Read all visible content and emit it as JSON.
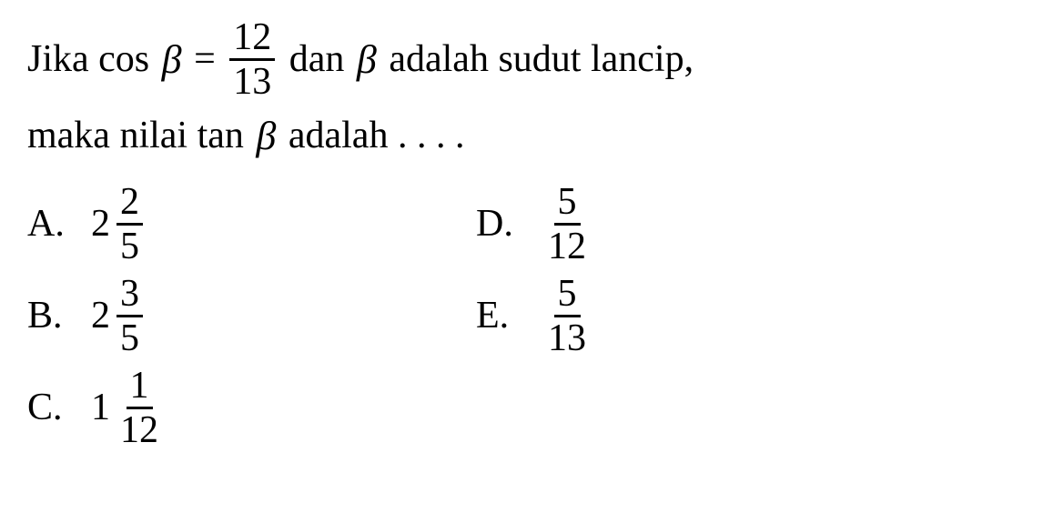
{
  "question": {
    "line1_parts": {
      "p1": "Jika cos ",
      "beta1": "β",
      "eq": " = ",
      "frac_num": "12",
      "frac_den": "13",
      "p2": " dan ",
      "beta2": "β",
      "p3": " adalah sudut lancip,"
    },
    "line2_parts": {
      "p1": "maka nilai tan ",
      "beta": "β",
      "p2": " adalah . . . ."
    }
  },
  "options": {
    "a": {
      "letter": "A.",
      "whole": "2",
      "num": "2",
      "den": "5"
    },
    "b": {
      "letter": "B.",
      "whole": "2",
      "num": "3",
      "den": "5"
    },
    "c": {
      "letter": "C.",
      "whole": "1",
      "num": "1",
      "den": "12"
    },
    "d": {
      "letter": "D.",
      "num": "5",
      "den": "12"
    },
    "e": {
      "letter": "E.",
      "num": "5",
      "den": "13"
    }
  },
  "style": {
    "font_family": "Times New Roman",
    "font_size_pt": 42,
    "text_color": "#000000",
    "background_color": "#ffffff",
    "fraction_rule_thickness": 3
  }
}
